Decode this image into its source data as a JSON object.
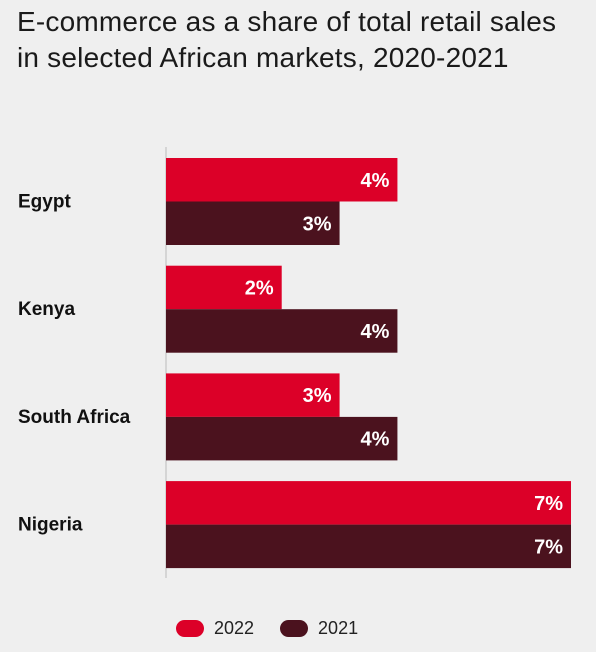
{
  "title": "E-commerce as a share of total retail sales in selected African markets, 2020-2021",
  "colors": {
    "2022": "#dc0028",
    "2021": "#4b121e",
    "axis": "#bbbbbb"
  },
  "legend": [
    {
      "label": "2022",
      "color": "#dc0028"
    },
    {
      "label": "2021",
      "color": "#4b121e"
    }
  ],
  "chart_data": {
    "type": "bar",
    "orientation": "horizontal",
    "title": "E-commerce as a share of total retail sales in selected African markets, 2020-2021",
    "categories": [
      "Egypt",
      "Kenya",
      "South Africa",
      "Nigeria"
    ],
    "series": [
      {
        "name": "2022",
        "values": [
          4,
          2,
          3,
          7
        ],
        "labels": [
          "4%",
          "2%",
          "3%",
          "7%"
        ]
      },
      {
        "name": "2021",
        "values": [
          3,
          4,
          4,
          7
        ],
        "labels": [
          "3%",
          "4%",
          "4%",
          "7%"
        ]
      }
    ],
    "xlim": [
      0,
      7
    ],
    "legend_position": "bottom",
    "grid": false
  }
}
